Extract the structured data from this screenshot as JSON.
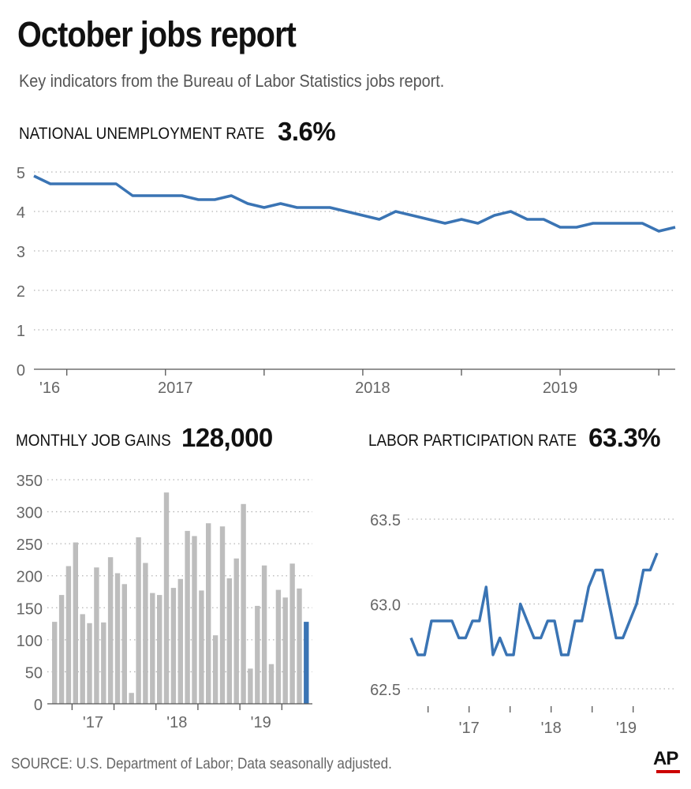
{
  "header": {
    "title": "October jobs report",
    "subtitle": "Key indicators from the Bureau of Labor Statistics jobs report."
  },
  "footer": {
    "source": "SOURCE: U.S. Department of Labor; Data seasonally adjusted.",
    "logo_text": "AP"
  },
  "colors": {
    "line": "#3a74b4",
    "bar": "#bdbdbd",
    "bar_highlight": "#3a74b4",
    "grid": "#b5b5b5",
    "axis_text": "#666666"
  },
  "chart_data": [
    {
      "id": "unemployment",
      "type": "line",
      "title": "NATIONAL UNEMPLOYMENT RATE",
      "headline_value": "3.6%",
      "ylim": [
        0,
        5
      ],
      "yticks": [
        0,
        1,
        2,
        3,
        4,
        5
      ],
      "ytick_labels": [
        "0",
        "1",
        "2",
        "3",
        "4",
        "5"
      ],
      "xtick_labels": [
        "'16",
        "2017",
        "2018",
        "2019"
      ],
      "grid": true,
      "x_start": "Oct 2016",
      "values": [
        4.9,
        4.7,
        4.7,
        4.7,
        4.7,
        4.7,
        4.4,
        4.4,
        4.4,
        4.4,
        4.3,
        4.3,
        4.4,
        4.2,
        4.1,
        4.2,
        4.1,
        4.1,
        4.1,
        4.0,
        3.9,
        3.8,
        4.0,
        3.9,
        3.8,
        3.7,
        3.8,
        3.7,
        3.9,
        4.0,
        3.8,
        3.8,
        3.6,
        3.6,
        3.7,
        3.7,
        3.7,
        3.7,
        3.5,
        3.6
      ]
    },
    {
      "id": "job_gains",
      "type": "bar",
      "title": "MONTHLY JOB GAINS",
      "headline_value": "128,000",
      "ylim": [
        0,
        350
      ],
      "yticks": [
        0,
        50,
        100,
        150,
        200,
        250,
        300,
        350
      ],
      "ytick_labels": [
        "0",
        "50",
        "100",
        "150",
        "200",
        "250",
        "300",
        "350"
      ],
      "xtick_labels": [
        "'17",
        "'18",
        "'19"
      ],
      "grid": true,
      "values": [
        128,
        170,
        215,
        252,
        140,
        126,
        213,
        127,
        229,
        204,
        187,
        17,
        260,
        220,
        173,
        170,
        330,
        181,
        195,
        270,
        262,
        177,
        282,
        107,
        277,
        196,
        227,
        312,
        55,
        153,
        216,
        62,
        178,
        166,
        219,
        180,
        128
      ]
    },
    {
      "id": "participation",
      "type": "line",
      "title": "LABOR PARTICIPATION RATE",
      "headline_value": "63.3%",
      "ylim": [
        62.5,
        63.5
      ],
      "yticks": [
        62.5,
        63.0,
        63.5
      ],
      "ytick_labels": [
        "62.5",
        "63.0",
        "63.5"
      ],
      "xtick_labels": [
        "'17",
        "'18",
        "'19"
      ],
      "grid": true,
      "values": [
        62.8,
        62.7,
        62.7,
        62.9,
        62.9,
        62.9,
        62.9,
        62.8,
        62.8,
        62.9,
        62.9,
        63.1,
        62.7,
        62.8,
        62.7,
        62.7,
        63.0,
        62.9,
        62.8,
        62.8,
        62.9,
        62.9,
        62.7,
        62.7,
        62.9,
        62.9,
        63.1,
        63.2,
        63.2,
        63.0,
        62.8,
        62.8,
        62.9,
        63.0,
        63.2,
        63.2,
        63.3
      ]
    }
  ]
}
